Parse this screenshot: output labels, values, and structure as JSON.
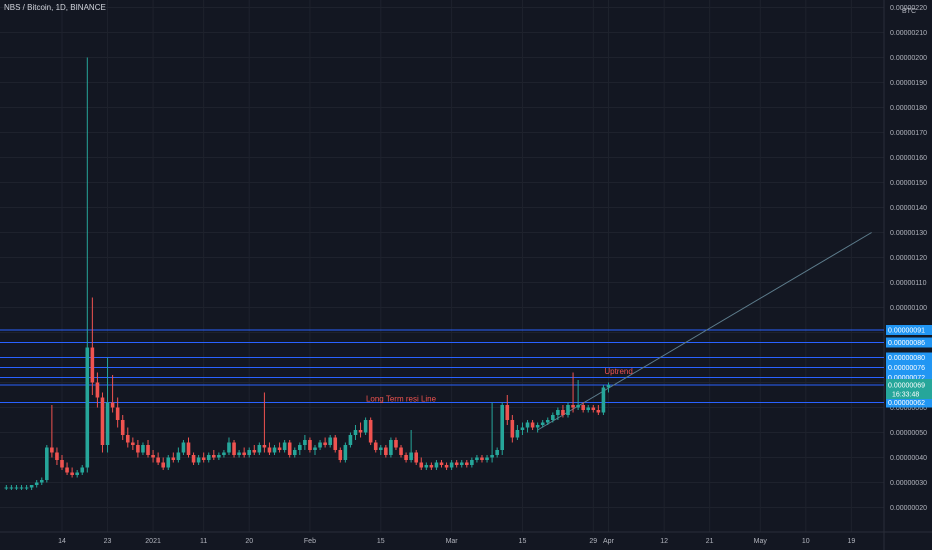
{
  "title": "NBS / Bitcoin, 1D, BINANCE",
  "colors": {
    "background": "#131722",
    "grid": "#1e222d",
    "up": "#26a69a",
    "down": "#ef5350",
    "hline": "#2962ff",
    "label_bg": "#2196f3",
    "current_bg": "#26a69a",
    "text": "#b2b5be"
  },
  "chart_data": {
    "type": "candlestick",
    "title": "NBS / Bitcoin, 1D, BINANCE",
    "y_unit": "BTC",
    "ylim": [
      1.6e-07,
      2.22e-06
    ],
    "y_ticks": [
      "0.00000020",
      "0.00000030",
      "0.00000040",
      "0.00000050",
      "0.00000060",
      "0.00000070",
      "0.00000080",
      "0.00000090",
      "0.00000100",
      "0.00000110",
      "0.00000120",
      "0.00000130",
      "0.00000140",
      "0.00000150",
      "0.00000160",
      "0.00000170",
      "0.00000180",
      "0.00000190",
      "0.00000200",
      "0.00000210",
      "0.00000220"
    ],
    "y_tick_values": [
      20,
      30,
      40,
      50,
      60,
      70,
      80,
      90,
      100,
      110,
      120,
      130,
      140,
      150,
      160,
      170,
      180,
      190,
      200,
      210,
      220
    ],
    "x_ticks": [
      {
        "label": "14",
        "day": 0
      },
      {
        "label": "23",
        "day": 9
      },
      {
        "label": "2021",
        "day": 18
      },
      {
        "label": "11",
        "day": 28
      },
      {
        "label": "20",
        "day": 37
      },
      {
        "label": "Feb",
        "day": 49
      },
      {
        "label": "15",
        "day": 63
      },
      {
        "label": "Mar",
        "day": 77
      },
      {
        "label": "15",
        "day": 91
      },
      {
        "label": "29",
        "day": 105
      },
      {
        "label": "Apr",
        "day": 108
      },
      {
        "label": "12",
        "day": 119
      },
      {
        "label": "21",
        "day": 128
      },
      {
        "label": "May",
        "day": 138
      },
      {
        "label": "10",
        "day": 147
      },
      {
        "label": "19",
        "day": 156
      }
    ],
    "horizontal_lines": [
      {
        "value": 91,
        "label": "0.00000091"
      },
      {
        "value": 86,
        "label": "0.00000086"
      },
      {
        "value": 80,
        "label": "0.00000080"
      },
      {
        "value": 76,
        "label": "0.00000076"
      },
      {
        "value": 72,
        "label": "0.00000072"
      },
      {
        "value": 69,
        "label": "0.00000069"
      },
      {
        "value": 62,
        "label": "0.00000062"
      }
    ],
    "current_price": {
      "value": 69,
      "label": "0.00000069",
      "countdown": "16:33:48"
    },
    "trendline": {
      "from": {
        "day": 94,
        "value": 51
      },
      "to": {
        "day": 160,
        "value": 130
      }
    },
    "annotations": [
      {
        "text": "Long Term resi Line",
        "day": 67,
        "value": 62.5,
        "color": "#ef5350"
      },
      {
        "text": "Uptrend",
        "day": 110,
        "value": 73.5,
        "color": "#ef5350"
      }
    ],
    "candles": [
      {
        "day": -11,
        "o": 28,
        "h": 29,
        "l": 27,
        "c": 28
      },
      {
        "day": -10,
        "o": 28,
        "h": 29,
        "l": 27,
        "c": 28
      },
      {
        "day": -9,
        "o": 28,
        "h": 29,
        "l": 27,
        "c": 28
      },
      {
        "day": -8,
        "o": 28,
        "h": 29,
        "l": 27,
        "c": 28
      },
      {
        "day": -7,
        "o": 28,
        "h": 29,
        "l": 27,
        "c": 28
      },
      {
        "day": -6,
        "o": 28,
        "h": 29,
        "l": 27,
        "c": 29
      },
      {
        "day": -5,
        "o": 29,
        "h": 31,
        "l": 28,
        "c": 30
      },
      {
        "day": -4,
        "o": 30,
        "h": 32,
        "l": 29,
        "c": 31
      },
      {
        "day": -3,
        "o": 31,
        "h": 45,
        "l": 30,
        "c": 44
      },
      {
        "day": -2,
        "o": 44,
        "h": 61,
        "l": 40,
        "c": 42
      },
      {
        "day": -1,
        "o": 42,
        "h": 44,
        "l": 37,
        "c": 39
      },
      {
        "day": 0,
        "o": 39,
        "h": 41,
        "l": 35,
        "c": 36
      },
      {
        "day": 1,
        "o": 36,
        "h": 38,
        "l": 33,
        "c": 34
      },
      {
        "day": 2,
        "o": 34,
        "h": 36,
        "l": 32,
        "c": 33
      },
      {
        "day": 3,
        "o": 33,
        "h": 35,
        "l": 32,
        "c": 34
      },
      {
        "day": 4,
        "o": 34,
        "h": 37,
        "l": 33,
        "c": 36
      },
      {
        "day": 5,
        "o": 36,
        "h": 200,
        "l": 34,
        "c": 84
      },
      {
        "day": 6,
        "o": 84,
        "h": 104,
        "l": 65,
        "c": 70
      },
      {
        "day": 7,
        "o": 70,
        "h": 74,
        "l": 60,
        "c": 64
      },
      {
        "day": 8,
        "o": 64,
        "h": 66,
        "l": 42,
        "c": 45
      },
      {
        "day": 9,
        "o": 45,
        "h": 80,
        "l": 42,
        "c": 62
      },
      {
        "day": 10,
        "o": 62,
        "h": 73,
        "l": 58,
        "c": 60
      },
      {
        "day": 11,
        "o": 60,
        "h": 64,
        "l": 52,
        "c": 55
      },
      {
        "day": 12,
        "o": 55,
        "h": 57,
        "l": 47,
        "c": 49
      },
      {
        "day": 13,
        "o": 49,
        "h": 52,
        "l": 44,
        "c": 46
      },
      {
        "day": 14,
        "o": 46,
        "h": 48,
        "l": 43,
        "c": 45
      },
      {
        "day": 15,
        "o": 45,
        "h": 47,
        "l": 40,
        "c": 42
      },
      {
        "day": 16,
        "o": 42,
        "h": 46,
        "l": 41,
        "c": 45
      },
      {
        "day": 17,
        "o": 45,
        "h": 47,
        "l": 40,
        "c": 41
      },
      {
        "day": 18,
        "o": 41,
        "h": 43,
        "l": 38,
        "c": 40
      },
      {
        "day": 19,
        "o": 40,
        "h": 42,
        "l": 37,
        "c": 38
      },
      {
        "day": 20,
        "o": 38,
        "h": 40,
        "l": 35,
        "c": 36
      },
      {
        "day": 21,
        "o": 36,
        "h": 41,
        "l": 35,
        "c": 40
      },
      {
        "day": 22,
        "o": 40,
        "h": 42,
        "l": 38,
        "c": 39
      },
      {
        "day": 23,
        "o": 39,
        "h": 44,
        "l": 38,
        "c": 42
      },
      {
        "day": 24,
        "o": 42,
        "h": 47,
        "l": 41,
        "c": 46
      },
      {
        "day": 25,
        "o": 46,
        "h": 48,
        "l": 40,
        "c": 41
      },
      {
        "day": 26,
        "o": 41,
        "h": 42,
        "l": 37,
        "c": 38
      },
      {
        "day": 27,
        "o": 38,
        "h": 41,
        "l": 37,
        "c": 40
      },
      {
        "day": 28,
        "o": 40,
        "h": 42,
        "l": 38,
        "c": 39
      },
      {
        "day": 29,
        "o": 39,
        "h": 42,
        "l": 38,
        "c": 41
      },
      {
        "day": 30,
        "o": 41,
        "h": 43,
        "l": 39,
        "c": 40
      },
      {
        "day": 31,
        "o": 40,
        "h": 42,
        "l": 39,
        "c": 41
      },
      {
        "day": 32,
        "o": 41,
        "h": 43,
        "l": 40,
        "c": 42
      },
      {
        "day": 33,
        "o": 42,
        "h": 48,
        "l": 41,
        "c": 46
      },
      {
        "day": 34,
        "o": 46,
        "h": 47,
        "l": 40,
        "c": 41
      },
      {
        "day": 35,
        "o": 41,
        "h": 43,
        "l": 40,
        "c": 42
      },
      {
        "day": 36,
        "o": 42,
        "h": 44,
        "l": 40,
        "c": 41
      },
      {
        "day": 37,
        "o": 41,
        "h": 44,
        "l": 40,
        "c": 43
      },
      {
        "day": 38,
        "o": 43,
        "h": 45,
        "l": 41,
        "c": 42
      },
      {
        "day": 39,
        "o": 42,
        "h": 46,
        "l": 41,
        "c": 45
      },
      {
        "day": 40,
        "o": 45,
        "h": 66,
        "l": 42,
        "c": 44
      },
      {
        "day": 41,
        "o": 44,
        "h": 46,
        "l": 41,
        "c": 42
      },
      {
        "day": 42,
        "o": 42,
        "h": 45,
        "l": 41,
        "c": 44
      },
      {
        "day": 43,
        "o": 44,
        "h": 46,
        "l": 42,
        "c": 43
      },
      {
        "day": 44,
        "o": 43,
        "h": 47,
        "l": 42,
        "c": 46
      },
      {
        "day": 45,
        "o": 46,
        "h": 47,
        "l": 40,
        "c": 41
      },
      {
        "day": 46,
        "o": 41,
        "h": 44,
        "l": 40,
        "c": 43
      },
      {
        "day": 47,
        "o": 43,
        "h": 46,
        "l": 41,
        "c": 45
      },
      {
        "day": 48,
        "o": 45,
        "h": 49,
        "l": 43,
        "c": 47
      },
      {
        "day": 49,
        "o": 47,
        "h": 48,
        "l": 42,
        "c": 43
      },
      {
        "day": 50,
        "o": 43,
        "h": 45,
        "l": 41,
        "c": 44
      },
      {
        "day": 51,
        "o": 44,
        "h": 47,
        "l": 43,
        "c": 46
      },
      {
        "day": 52,
        "o": 46,
        "h": 48,
        "l": 44,
        "c": 45
      },
      {
        "day": 53,
        "o": 45,
        "h": 49,
        "l": 44,
        "c": 48
      },
      {
        "day": 54,
        "o": 48,
        "h": 49,
        "l": 42,
        "c": 43
      },
      {
        "day": 55,
        "o": 43,
        "h": 44,
        "l": 38,
        "c": 39
      },
      {
        "day": 56,
        "o": 39,
        "h": 46,
        "l": 38,
        "c": 45
      },
      {
        "day": 57,
        "o": 45,
        "h": 50,
        "l": 44,
        "c": 49
      },
      {
        "day": 58,
        "o": 49,
        "h": 53,
        "l": 47,
        "c": 51
      },
      {
        "day": 59,
        "o": 51,
        "h": 54,
        "l": 48,
        "c": 50
      },
      {
        "day": 60,
        "o": 50,
        "h": 56,
        "l": 49,
        "c": 55
      },
      {
        "day": 61,
        "o": 55,
        "h": 56,
        "l": 45,
        "c": 46
      },
      {
        "day": 62,
        "o": 46,
        "h": 47,
        "l": 42,
        "c": 43
      },
      {
        "day": 63,
        "o": 43,
        "h": 45,
        "l": 41,
        "c": 44
      },
      {
        "day": 64,
        "o": 44,
        "h": 45,
        "l": 40,
        "c": 41
      },
      {
        "day": 65,
        "o": 41,
        "h": 48,
        "l": 40,
        "c": 47
      },
      {
        "day": 66,
        "o": 47,
        "h": 48,
        "l": 43,
        "c": 44
      },
      {
        "day": 67,
        "o": 44,
        "h": 45,
        "l": 40,
        "c": 41
      },
      {
        "day": 68,
        "o": 41,
        "h": 42,
        "l": 38,
        "c": 39
      },
      {
        "day": 69,
        "o": 39,
        "h": 51,
        "l": 38,
        "c": 42
      },
      {
        "day": 70,
        "o": 42,
        "h": 43,
        "l": 37,
        "c": 38
      },
      {
        "day": 71,
        "o": 38,
        "h": 40,
        "l": 35,
        "c": 36
      },
      {
        "day": 72,
        "o": 36,
        "h": 38,
        "l": 35,
        "c": 37
      },
      {
        "day": 73,
        "o": 37,
        "h": 38,
        "l": 35,
        "c": 36
      },
      {
        "day": 74,
        "o": 36,
        "h": 39,
        "l": 35,
        "c": 38
      },
      {
        "day": 75,
        "o": 38,
        "h": 39,
        "l": 36,
        "c": 37
      },
      {
        "day": 76,
        "o": 37,
        "h": 38,
        "l": 35,
        "c": 36
      },
      {
        "day": 77,
        "o": 36,
        "h": 39,
        "l": 35,
        "c": 38
      },
      {
        "day": 78,
        "o": 38,
        "h": 39,
        "l": 36,
        "c": 37
      },
      {
        "day": 79,
        "o": 37,
        "h": 39,
        "l": 36,
        "c": 38
      },
      {
        "day": 80,
        "o": 38,
        "h": 39,
        "l": 36,
        "c": 37
      },
      {
        "day": 81,
        "o": 37,
        "h": 40,
        "l": 36,
        "c": 39
      },
      {
        "day": 82,
        "o": 39,
        "h": 41,
        "l": 38,
        "c": 40
      },
      {
        "day": 83,
        "o": 40,
        "h": 41,
        "l": 38,
        "c": 39
      },
      {
        "day": 84,
        "o": 39,
        "h": 41,
        "l": 38,
        "c": 40
      },
      {
        "day": 85,
        "o": 40,
        "h": 62,
        "l": 38,
        "c": 41
      },
      {
        "day": 86,
        "o": 41,
        "h": 44,
        "l": 40,
        "c": 43
      },
      {
        "day": 87,
        "o": 43,
        "h": 62,
        "l": 41,
        "c": 61
      },
      {
        "day": 88,
        "o": 61,
        "h": 65,
        "l": 53,
        "c": 55
      },
      {
        "day": 89,
        "o": 55,
        "h": 57,
        "l": 46,
        "c": 48
      },
      {
        "day": 90,
        "o": 48,
        "h": 53,
        "l": 47,
        "c": 51
      },
      {
        "day": 91,
        "o": 51,
        "h": 54,
        "l": 49,
        "c": 52
      },
      {
        "day": 92,
        "o": 52,
        "h": 55,
        "l": 50,
        "c": 54
      },
      {
        "day": 93,
        "o": 54,
        "h": 55,
        "l": 51,
        "c": 52
      },
      {
        "day": 94,
        "o": 52,
        "h": 54,
        "l": 50,
        "c": 53
      },
      {
        "day": 95,
        "o": 53,
        "h": 55,
        "l": 52,
        "c": 54
      },
      {
        "day": 96,
        "o": 54,
        "h": 56,
        "l": 53,
        "c": 55
      },
      {
        "day": 97,
        "o": 55,
        "h": 58,
        "l": 54,
        "c": 57
      },
      {
        "day": 98,
        "o": 57,
        "h": 60,
        "l": 55,
        "c": 59
      },
      {
        "day": 99,
        "o": 59,
        "h": 61,
        "l": 56,
        "c": 57
      },
      {
        "day": 100,
        "o": 57,
        "h": 62,
        "l": 56,
        "c": 61
      },
      {
        "day": 101,
        "o": 61,
        "h": 74,
        "l": 58,
        "c": 60
      },
      {
        "day": 102,
        "o": 60,
        "h": 71,
        "l": 59,
        "c": 61
      },
      {
        "day": 103,
        "o": 61,
        "h": 62,
        "l": 58,
        "c": 59
      },
      {
        "day": 104,
        "o": 59,
        "h": 61,
        "l": 58,
        "c": 60
      },
      {
        "day": 105,
        "o": 60,
        "h": 61,
        "l": 58,
        "c": 59
      },
      {
        "day": 106,
        "o": 59,
        "h": 61,
        "l": 57,
        "c": 58
      },
      {
        "day": 107,
        "o": 58,
        "h": 69,
        "l": 57,
        "c": 68
      },
      {
        "day": 108,
        "o": 68,
        "h": 70,
        "l": 66,
        "c": 69
      }
    ]
  }
}
